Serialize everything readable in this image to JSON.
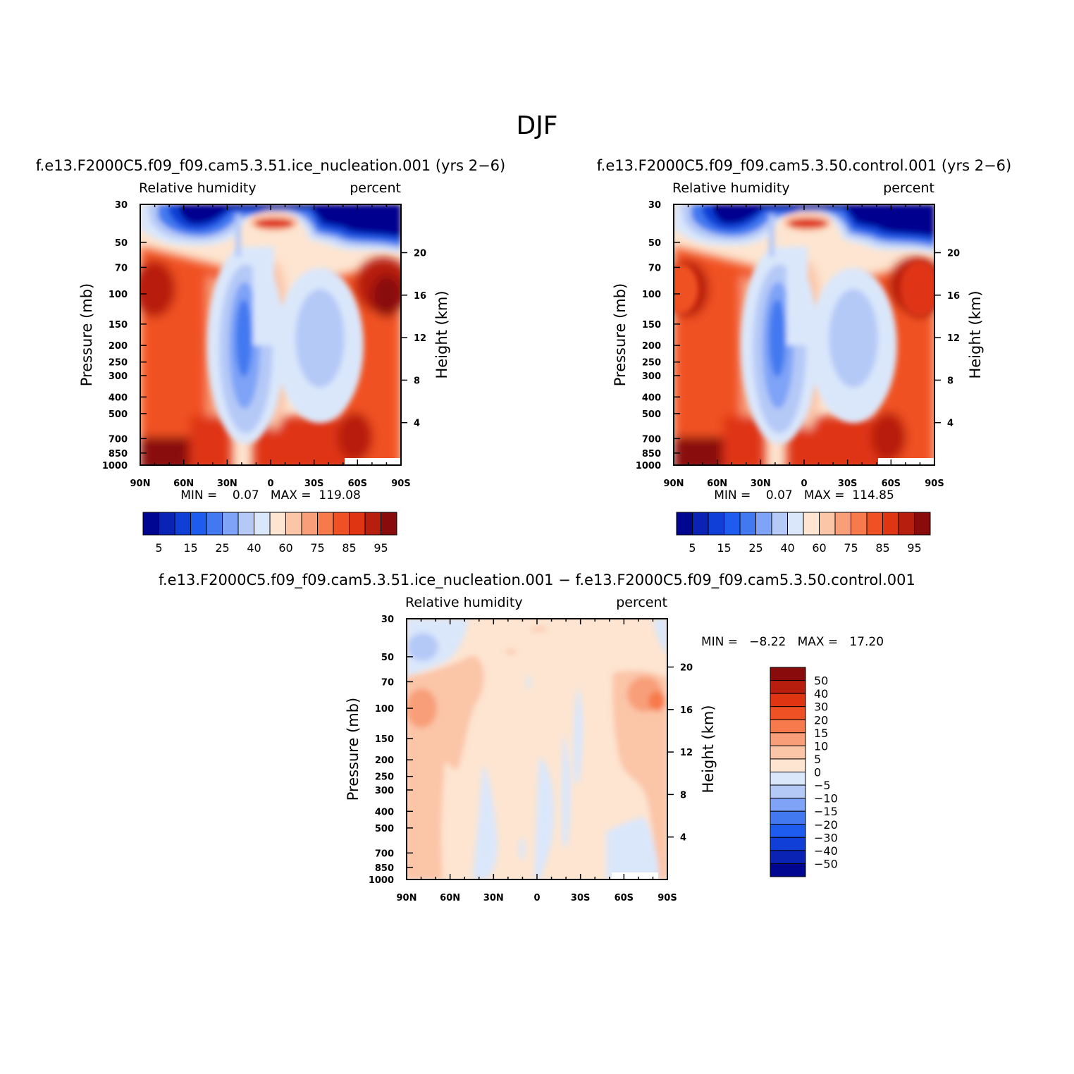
{
  "figure": {
    "title": "DJF",
    "panels": [
      {
        "id": "test",
        "case_title": "f.e13.F2000C5.f09_f09.cam5.3.51.ice_nucleation.001 (yrs 2−6)",
        "left_label": "Relative humidity",
        "right_label": "percent",
        "ylabel": "Pressure (mb)",
        "y2label": "Height (km)",
        "stats_text": "MIN =    0.07   MAX =  119.08",
        "min": 0.07,
        "max": 119.08
      },
      {
        "id": "control",
        "case_title": "f.e13.F2000C5.f09_f09.cam5.3.50.control.001 (yrs 2−6)",
        "left_label": "Relative humidity",
        "right_label": "percent",
        "ylabel": "Pressure (mb)",
        "y2label": "Height (km)",
        "stats_text": "MIN =    0.07   MAX =  114.85",
        "min": 0.07,
        "max": 114.85
      },
      {
        "id": "diff",
        "case_title": "f.e13.F2000C5.f09_f09.cam5.3.51.ice_nucleation.001 − f.e13.F2000C5.f09_f09.cam5.3.50.control.001",
        "left_label": "Relative humidity",
        "right_label": "percent",
        "ylabel": "Pressure (mb)",
        "y2label": "Height (km)",
        "stats_text": "MIN =   −8.22   MAX =   17.20",
        "min": -8.22,
        "max": 17.2
      }
    ]
  },
  "chart_data": [
    {
      "type": "heatmap",
      "title": "f.e13.F2000C5.f09_f09.cam5.3.51.ice_nucleation.001 (yrs 2−6)",
      "subtitle_left": "Relative humidity",
      "subtitle_right": "percent",
      "x_ticks": [
        "90N",
        "60N",
        "30N",
        "0",
        "30S",
        "60S",
        "90S"
      ],
      "xlim": [
        90,
        -90
      ],
      "y_ticks": [
        30,
        50,
        70,
        100,
        150,
        200,
        250,
        300,
        400,
        500,
        700,
        850,
        1000
      ],
      "y_scale": "log",
      "ylim": [
        1000,
        30
      ],
      "ylabel": "Pressure (mb)",
      "y2_ticks": [
        20,
        16,
        12,
        8,
        4
      ],
      "y2label": "Height (km)",
      "min": 0.07,
      "max": 119.08,
      "contour_levels": [
        5,
        10,
        15,
        20,
        25,
        30,
        40,
        50,
        60,
        65,
        75,
        80,
        85,
        90,
        95
      ],
      "colorbar_labels": [
        "5",
        "15",
        "25",
        "40",
        "60",
        "75",
        "85",
        "95"
      ],
      "colors": [
        "#00068f",
        "#0a23b5",
        "#0f3fd6",
        "#1e5cf0",
        "#4279f0",
        "#7ea3f7",
        "#b5c9f7",
        "#dae7fb",
        "#fde5d1",
        "#fbc5a8",
        "#f89f79",
        "#f77a4c",
        "#f05124",
        "#df3512",
        "#b71e0e",
        "#8a0b0b"
      ]
    },
    {
      "type": "heatmap",
      "title": "f.e13.F2000C5.f09_f09.cam5.3.50.control.001 (yrs 2−6)",
      "subtitle_left": "Relative humidity",
      "subtitle_right": "percent",
      "x_ticks": [
        "90N",
        "60N",
        "30N",
        "0",
        "30S",
        "60S",
        "90S"
      ],
      "xlim": [
        90,
        -90
      ],
      "y_ticks": [
        30,
        50,
        70,
        100,
        150,
        200,
        250,
        300,
        400,
        500,
        700,
        850,
        1000
      ],
      "y_scale": "log",
      "ylim": [
        1000,
        30
      ],
      "ylabel": "Pressure (mb)",
      "y2_ticks": [
        20,
        16,
        12,
        8,
        4
      ],
      "y2label": "Height (km)",
      "min": 0.07,
      "max": 114.85,
      "contour_levels": [
        5,
        10,
        15,
        20,
        25,
        30,
        40,
        50,
        60,
        65,
        75,
        80,
        85,
        90,
        95
      ],
      "colorbar_labels": [
        "5",
        "15",
        "25",
        "40",
        "60",
        "75",
        "85",
        "95"
      ],
      "colors": [
        "#00068f",
        "#0a23b5",
        "#0f3fd6",
        "#1e5cf0",
        "#4279f0",
        "#7ea3f7",
        "#b5c9f7",
        "#dae7fb",
        "#fde5d1",
        "#fbc5a8",
        "#f89f79",
        "#f77a4c",
        "#f05124",
        "#df3512",
        "#b71e0e",
        "#8a0b0b"
      ]
    },
    {
      "type": "heatmap",
      "title": "f.e13.F2000C5.f09_f09.cam5.3.51.ice_nucleation.001 − f.e13.F2000C5.f09_f09.cam5.3.50.control.001",
      "subtitle_left": "Relative humidity",
      "subtitle_right": "percent",
      "x_ticks": [
        "90N",
        "60N",
        "30N",
        "0",
        "30S",
        "60S",
        "90S"
      ],
      "xlim": [
        90,
        -90
      ],
      "y_ticks": [
        30,
        50,
        70,
        100,
        150,
        200,
        250,
        300,
        400,
        500,
        700,
        850,
        1000
      ],
      "y_scale": "log",
      "ylim": [
        1000,
        30
      ],
      "ylabel": "Pressure (mb)",
      "y2_ticks": [
        20,
        16,
        12,
        8,
        4
      ],
      "y2label": "Height (km)",
      "min": -8.22,
      "max": 17.2,
      "contour_levels": [
        -50,
        -40,
        -30,
        -20,
        -15,
        -10,
        -5,
        0,
        5,
        10,
        15,
        20,
        30,
        40,
        50
      ],
      "colorbar_labels": [
        "50",
        "40",
        "30",
        "20",
        "15",
        "10",
        "5",
        "0",
        "−5",
        "−10",
        "−15",
        "−20",
        "−30",
        "−40",
        "−50"
      ],
      "colors": [
        "#00068f",
        "#0a23b5",
        "#0f3fd6",
        "#1e5cf0",
        "#4279f0",
        "#7ea3f7",
        "#b5c9f7",
        "#dae7fb",
        "#fde5d1",
        "#fbc5a8",
        "#f89f79",
        "#f77a4c",
        "#f05124",
        "#df3512",
        "#b71e0e",
        "#8a0b0b"
      ]
    }
  ]
}
